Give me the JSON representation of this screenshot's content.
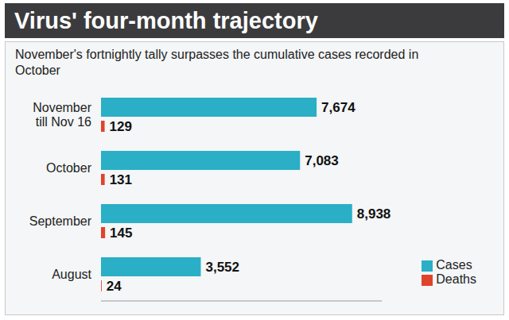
{
  "chart_data": {
    "type": "bar",
    "orientation": "horizontal",
    "title": "Virus' four-month trajectory",
    "subtitle": "November's fortnightly tally surpasses the cumulative cases recorded in October",
    "categories": [
      "November till Nov 16",
      "October",
      "September",
      "August"
    ],
    "series": [
      {
        "name": "Cases",
        "color": "#2aafc6",
        "values": [
          7674,
          7083,
          8938,
          3552
        ],
        "value_labels": [
          "7,674",
          "7,083",
          "8,938",
          "3,552"
        ]
      },
      {
        "name": "Deaths",
        "color": "#e0432b",
        "values": [
          129,
          131,
          145,
          24
        ]
      }
    ],
    "xlim": [
      0,
      10000
    ],
    "xticks": [],
    "grid": false,
    "legend": "lower right",
    "data_labels": true,
    "tick_labels": "y"
  }
}
